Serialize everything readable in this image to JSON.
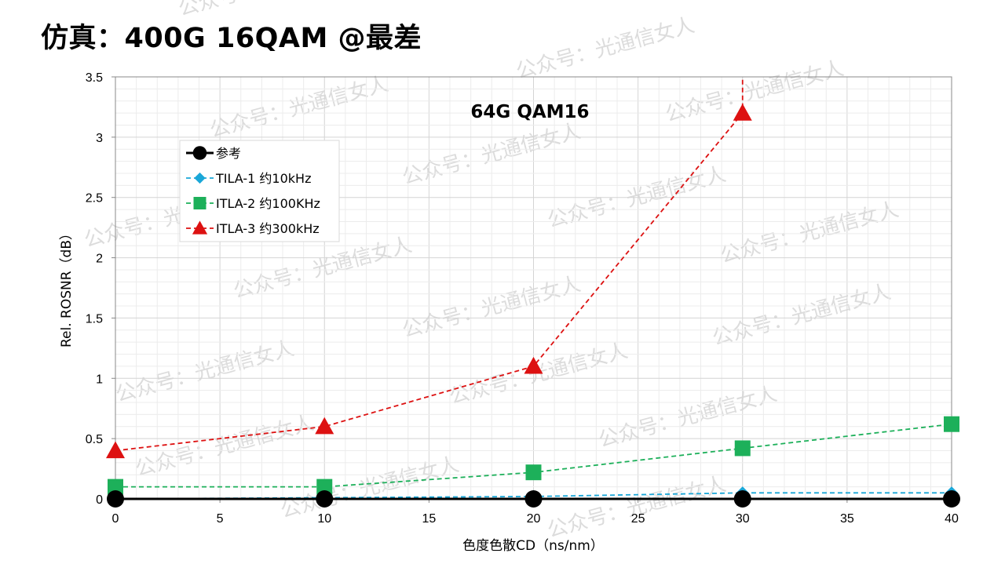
{
  "slide": {
    "title": "仿真：400G 16QAM @最差"
  },
  "watermark_text": "公众号：光通信女人",
  "chart_data": {
    "type": "line",
    "title": "64G QAM16",
    "xlabel": "色度色散CD（ns/nm）",
    "ylabel": "Rel. ROSNR（dB）",
    "xlim": [
      0,
      40
    ],
    "ylim": [
      0,
      3.5
    ],
    "xticks": [
      "0",
      "5",
      "10",
      "15",
      "20",
      "25",
      "30",
      "35",
      "40"
    ],
    "yticks": [
      "0",
      "0.5",
      "1",
      "1.5",
      "2",
      "2.5",
      "3",
      "3.5"
    ],
    "grid": true,
    "legend_position": "upper-left",
    "series": [
      {
        "name": "参考",
        "color": "#000000",
        "marker": "circle",
        "line": "solid",
        "x": [
          0,
          10,
          20,
          30,
          40
        ],
        "y": [
          0,
          0,
          0,
          0,
          0
        ]
      },
      {
        "name": "TILA-1 约10kHz",
        "color": "#1aa7d8",
        "marker": "diamond",
        "line": "dashed",
        "x": [
          0,
          10,
          20,
          30,
          40
        ],
        "y": [
          0,
          0.01,
          0.02,
          0.05,
          0.05
        ]
      },
      {
        "name": "ITLA-2 约100KHz",
        "color": "#1db05a",
        "marker": "square",
        "line": "dashed",
        "x": [
          0,
          10,
          20,
          30,
          40
        ],
        "y": [
          0.1,
          0.1,
          0.22,
          0.42,
          0.62
        ]
      },
      {
        "name": "ITLA-3 约300kHz",
        "color": "#dd1111",
        "marker": "triangle",
        "line": "dashed",
        "x": [
          0,
          10,
          20,
          30
        ],
        "y": [
          0.4,
          0.6,
          1.1,
          3.2
        ],
        "continues_off_chart_at_x": 30
      }
    ]
  }
}
